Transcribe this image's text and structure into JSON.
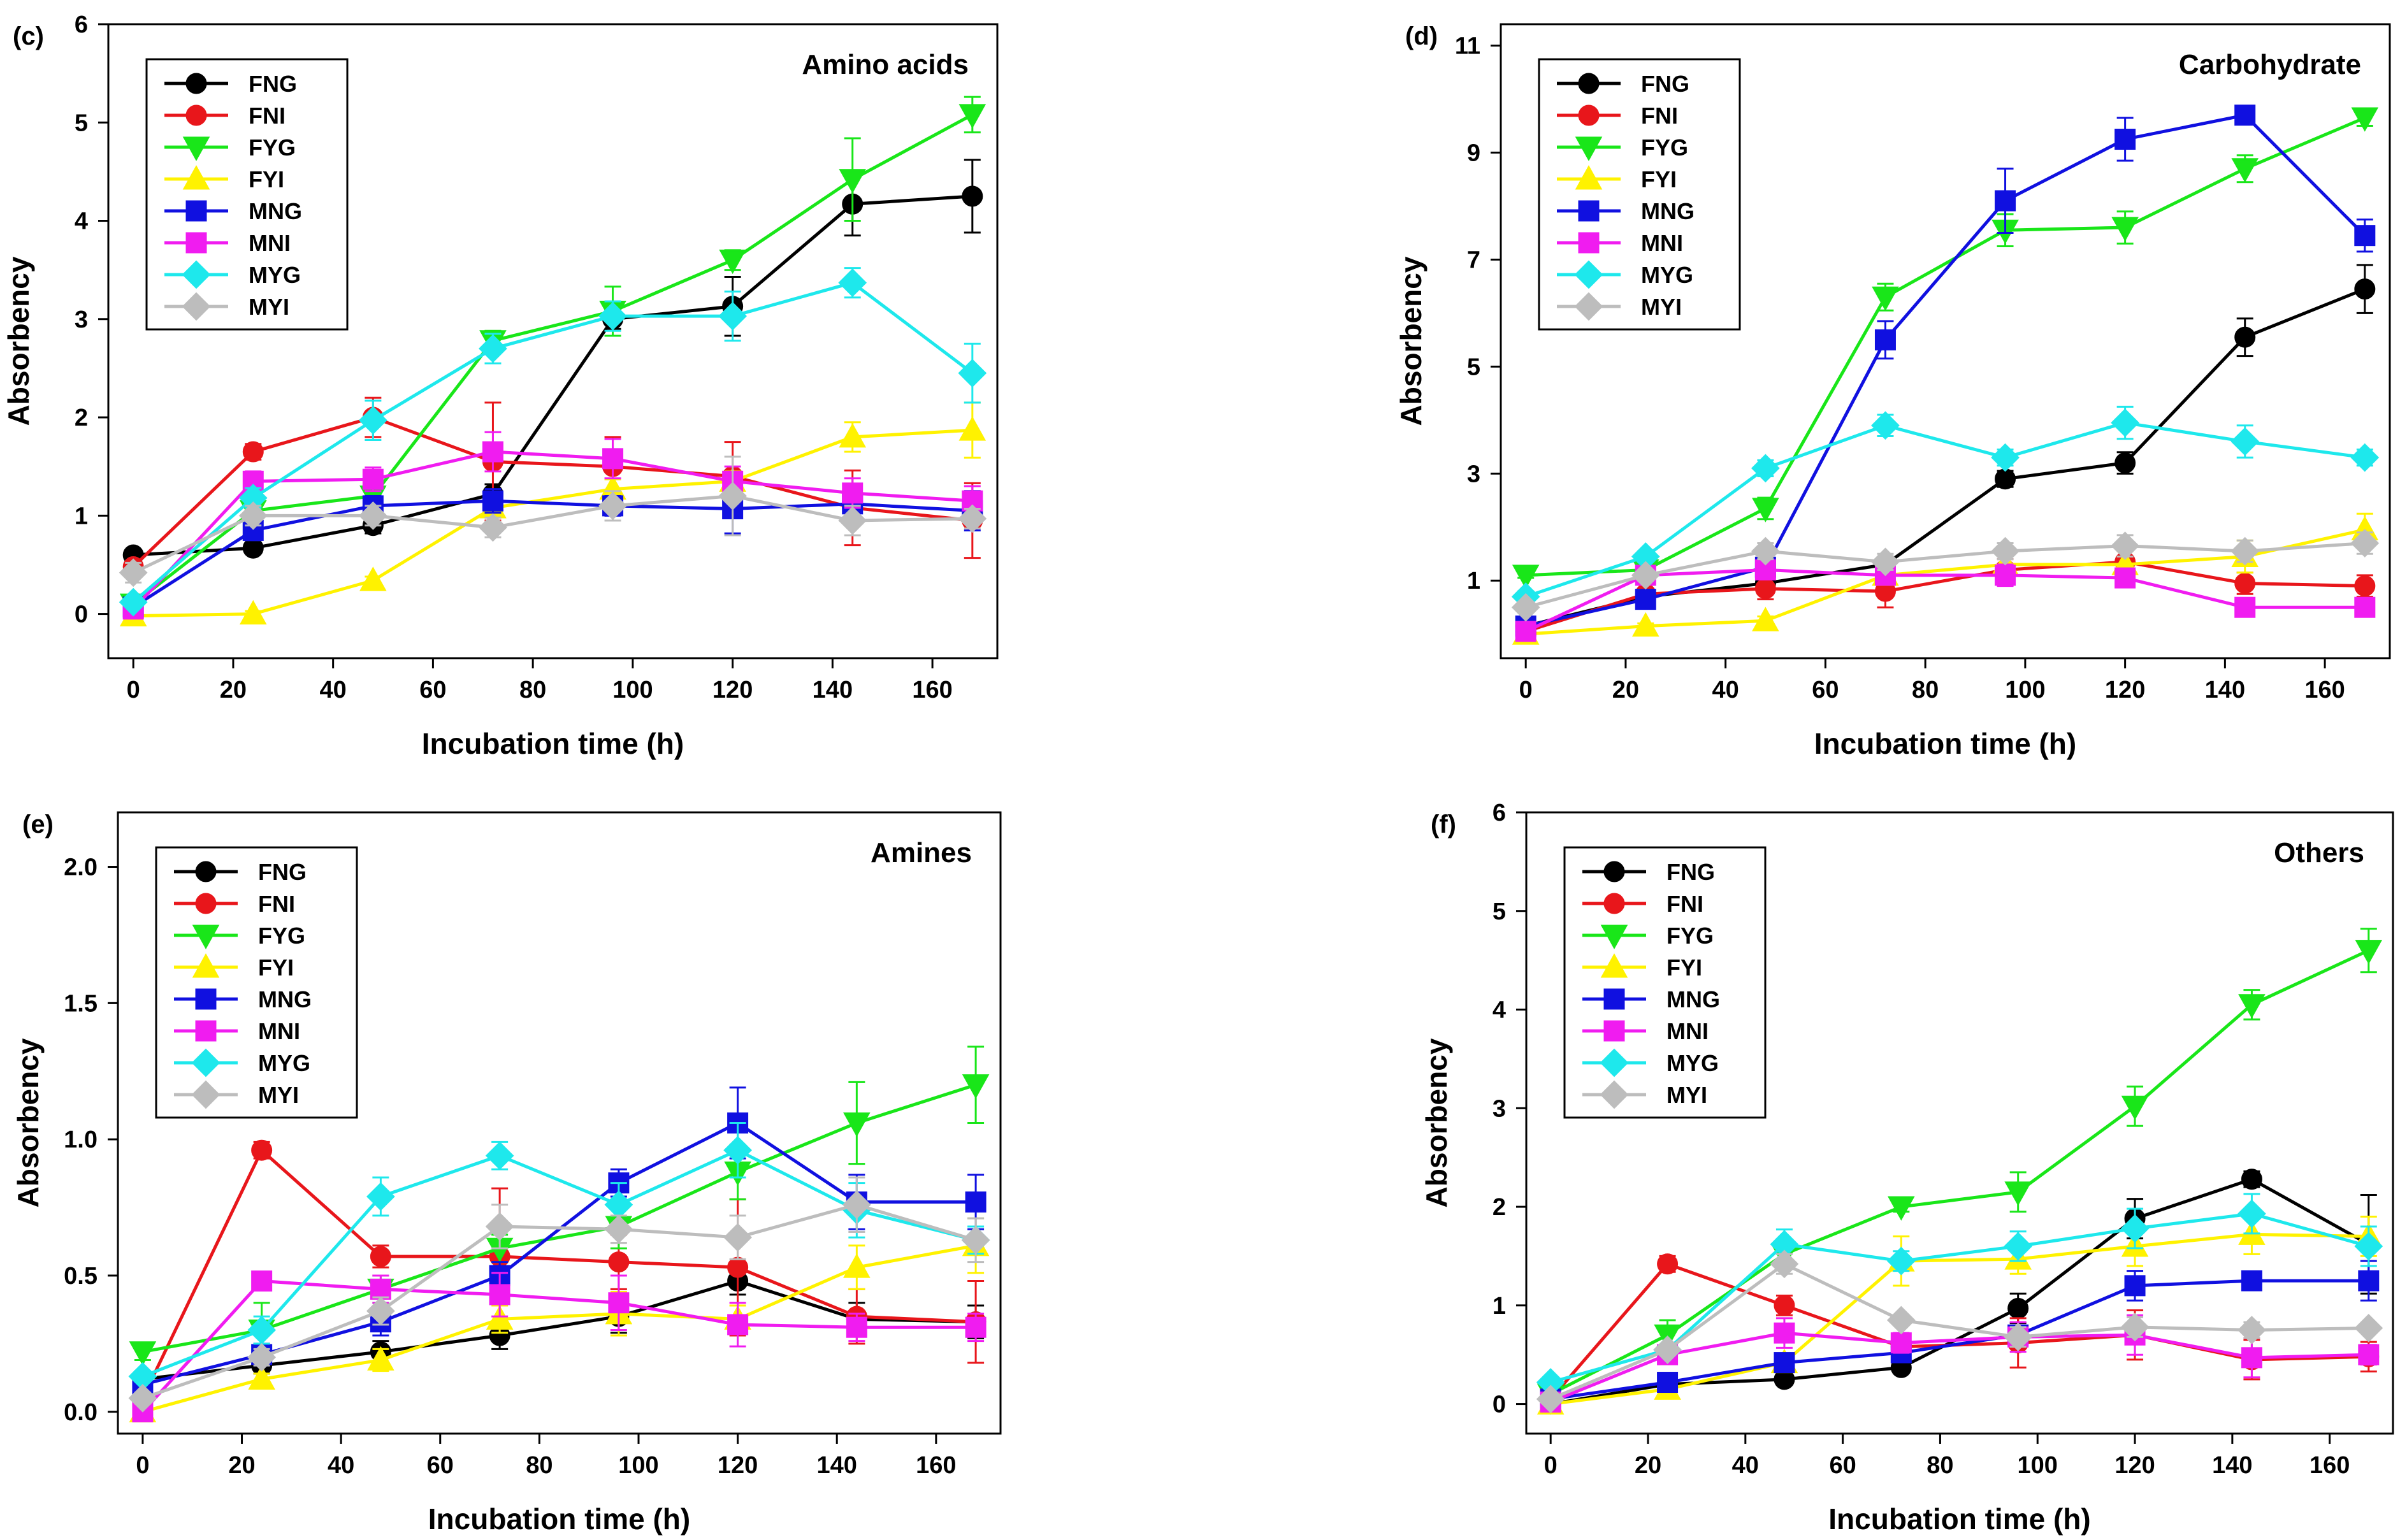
{
  "figure": {
    "xlabel": "Incubation time (h)",
    "ylabel": "Absorbency"
  },
  "series_style": [
    {
      "name": "FNG",
      "color": "#000000",
      "marker": "circle"
    },
    {
      "name": "FNI",
      "color": "#e8161b",
      "marker": "circle"
    },
    {
      "name": "FYG",
      "color": "#19e619",
      "marker": "triangle-down"
    },
    {
      "name": "FYI",
      "color": "#fff200",
      "marker": "triangle-up"
    },
    {
      "name": "MNG",
      "color": "#1010e0",
      "marker": "square"
    },
    {
      "name": "MNI",
      "color": "#f01cf0",
      "marker": "square"
    },
    {
      "name": "MYG",
      "color": "#1ee8ec",
      "marker": "diamond"
    },
    {
      "name": "MYI",
      "color": "#bdbdbd",
      "marker": "diamond"
    }
  ],
  "chart_data": [
    {
      "type": "line",
      "panel_label": "(c)",
      "title": "Amino acids",
      "xlabel": "Incubation time (h)",
      "ylabel": "Absorbency",
      "x": [
        0,
        24,
        48,
        72,
        96,
        120,
        144,
        168
      ],
      "xlim": [
        -5,
        173
      ],
      "ylim": [
        -0.45,
        6
      ],
      "xticks": [
        0,
        20,
        40,
        60,
        80,
        100,
        120,
        140,
        160
      ],
      "yticks": [
        0,
        1,
        2,
        3,
        4,
        5,
        6
      ],
      "tick_decimals": 0,
      "legend_position": "top-left",
      "series": [
        {
          "name": "FNG",
          "values": [
            0.6,
            0.67,
            0.9,
            1.22,
            3.0,
            3.13,
            4.17,
            4.25
          ],
          "errors": [
            0.05,
            0.05,
            0.08,
            0.1,
            0.1,
            0.3,
            0.32,
            0.37
          ]
        },
        {
          "name": "FNI",
          "values": [
            0.48,
            1.65,
            2.0,
            1.55,
            1.5,
            1.4,
            1.08,
            0.95
          ],
          "errors": [
            0.05,
            0.08,
            0.2,
            0.6,
            0.3,
            0.35,
            0.38,
            0.38
          ]
        },
        {
          "name": "FYG",
          "values": [
            0.1,
            1.05,
            1.2,
            2.78,
            3.08,
            3.6,
            4.42,
            5.08
          ],
          "errors": [
            0.05,
            0.1,
            0.15,
            0.1,
            0.25,
            0.1,
            0.42,
            0.18
          ]
        },
        {
          "name": "FYI",
          "values": [
            -0.02,
            0.0,
            0.34,
            1.08,
            1.27,
            1.35,
            1.8,
            1.87
          ],
          "errors": [
            0.02,
            0.03,
            0.04,
            0.1,
            0.1,
            0.1,
            0.15,
            0.28
          ]
        },
        {
          "name": "MNG",
          "values": [
            0.07,
            0.85,
            1.1,
            1.15,
            1.1,
            1.07,
            1.12,
            1.05
          ],
          "errors": [
            0.05,
            0.1,
            0.1,
            0.12,
            0.1,
            0.25,
            0.2,
            0.2
          ]
        },
        {
          "name": "MNI",
          "values": [
            0.05,
            1.35,
            1.37,
            1.65,
            1.58,
            1.35,
            1.23,
            1.15
          ],
          "errors": [
            0.05,
            0.1,
            0.12,
            0.2,
            0.2,
            0.15,
            0.15,
            0.15
          ]
        },
        {
          "name": "MYG",
          "values": [
            0.12,
            1.18,
            1.97,
            2.7,
            3.03,
            3.03,
            3.37,
            2.45
          ],
          "errors": [
            0.05,
            0.1,
            0.2,
            0.15,
            0.15,
            0.25,
            0.15,
            0.3
          ]
        },
        {
          "name": "MYI",
          "values": [
            0.42,
            1.0,
            1.0,
            0.88,
            1.1,
            1.2,
            0.95,
            0.97
          ],
          "errors": [
            0.1,
            0.1,
            0.1,
            0.1,
            0.15,
            0.4,
            0.15,
            0.1
          ]
        }
      ]
    },
    {
      "type": "line",
      "panel_label": "(d)",
      "title": "Carbohydrate",
      "xlabel": "Incubation time (h)",
      "ylabel": "Absorbency",
      "x": [
        0,
        24,
        48,
        72,
        96,
        120,
        144,
        168
      ],
      "xlim": [
        -5,
        173
      ],
      "ylim": [
        -0.45,
        11.4
      ],
      "xticks": [
        0,
        20,
        40,
        60,
        80,
        100,
        120,
        140,
        160
      ],
      "yticks": [
        1,
        3,
        5,
        7,
        9,
        11
      ],
      "tick_decimals": 0,
      "legend_position": "top-left",
      "series": [
        {
          "name": "FNG",
          "values": [
            0.15,
            0.7,
            0.95,
            1.3,
            2.9,
            3.2,
            5.55,
            6.45
          ],
          "errors": [
            0.05,
            0.08,
            0.1,
            0.15,
            0.15,
            0.2,
            0.35,
            0.45
          ]
        },
        {
          "name": "FNI",
          "values": [
            0.05,
            0.75,
            0.85,
            0.8,
            1.2,
            1.35,
            0.95,
            0.9
          ],
          "errors": [
            0.05,
            0.1,
            0.2,
            0.3,
            0.2,
            0.3,
            0.2,
            0.2
          ]
        },
        {
          "name": "FYG",
          "values": [
            1.1,
            1.2,
            2.35,
            6.3,
            7.55,
            7.6,
            8.7,
            9.65
          ],
          "errors": [
            0.05,
            0.1,
            0.2,
            0.25,
            0.3,
            0.3,
            0.25,
            0.15
          ]
        },
        {
          "name": "FYI",
          "values": [
            0.0,
            0.15,
            0.25,
            1.1,
            1.3,
            1.3,
            1.45,
            1.95
          ],
          "errors": [
            0.05,
            0.05,
            0.08,
            0.15,
            0.2,
            0.25,
            0.3,
            0.3
          ]
        },
        {
          "name": "MNG",
          "values": [
            0.15,
            0.65,
            1.25,
            5.5,
            8.1,
            9.25,
            9.7,
            7.45
          ],
          "errors": [
            0.05,
            0.1,
            0.15,
            0.35,
            0.6,
            0.4,
            0.1,
            0.3
          ]
        },
        {
          "name": "MNI",
          "values": [
            0.05,
            1.1,
            1.2,
            1.1,
            1.1,
            1.05,
            0.5,
            0.5
          ],
          "errors": [
            0.05,
            0.1,
            0.1,
            0.15,
            0.2,
            0.15,
            0.1,
            0.1
          ]
        },
        {
          "name": "MYG",
          "values": [
            0.7,
            1.45,
            3.1,
            3.9,
            3.3,
            3.95,
            3.6,
            3.3
          ],
          "errors": [
            0.1,
            0.1,
            0.15,
            0.2,
            0.15,
            0.3,
            0.3,
            0.15
          ]
        },
        {
          "name": "MYI",
          "values": [
            0.5,
            1.1,
            1.55,
            1.35,
            1.55,
            1.65,
            1.55,
            1.7
          ],
          "errors": [
            0.1,
            0.1,
            0.15,
            0.15,
            0.15,
            0.2,
            0.2,
            0.2
          ]
        }
      ]
    },
    {
      "type": "line",
      "panel_label": "(e)",
      "title": "Amines",
      "xlabel": "Incubation time (h)",
      "ylabel": "Absorbency",
      "x": [
        0,
        24,
        48,
        72,
        96,
        120,
        144,
        168
      ],
      "xlim": [
        -5,
        173
      ],
      "ylim": [
        -0.08,
        2.2
      ],
      "xticks": [
        0,
        20,
        40,
        60,
        80,
        100,
        120,
        140,
        160
      ],
      "yticks": [
        0.0,
        0.5,
        1.0,
        1.5,
        2.0
      ],
      "tick_decimals": 1,
      "legend_position": "top-left",
      "series": [
        {
          "name": "FNG",
          "values": [
            0.12,
            0.17,
            0.22,
            0.28,
            0.35,
            0.48,
            0.34,
            0.33
          ],
          "errors": [
            0.02,
            0.03,
            0.04,
            0.05,
            0.06,
            0.05,
            0.06,
            0.06
          ]
        },
        {
          "name": "FNI",
          "values": [
            0.05,
            0.96,
            0.57,
            0.57,
            0.55,
            0.53,
            0.35,
            0.33
          ],
          "errors": [
            0.02,
            0.03,
            0.04,
            0.25,
            0.1,
            0.25,
            0.1,
            0.15
          ]
        },
        {
          "name": "FYG",
          "values": [
            0.22,
            0.3,
            0.45,
            0.6,
            0.68,
            0.88,
            1.06,
            1.2
          ],
          "errors": [
            0.03,
            0.1,
            0.05,
            0.05,
            0.08,
            0.1,
            0.15,
            0.14
          ]
        },
        {
          "name": "FYI",
          "values": [
            0.0,
            0.12,
            0.19,
            0.34,
            0.36,
            0.34,
            0.53,
            0.61
          ],
          "errors": [
            0.02,
            0.02,
            0.04,
            0.05,
            0.08,
            0.05,
            0.08,
            0.1
          ]
        },
        {
          "name": "MNG",
          "values": [
            0.1,
            0.21,
            0.33,
            0.5,
            0.84,
            1.06,
            0.77,
            0.77
          ],
          "errors": [
            0.02,
            0.04,
            0.05,
            0.05,
            0.05,
            0.13,
            0.1,
            0.1
          ]
        },
        {
          "name": "MNI",
          "values": [
            0.0,
            0.48,
            0.45,
            0.43,
            0.4,
            0.32,
            0.31,
            0.31
          ],
          "errors": [
            0.02,
            0.03,
            0.05,
            0.08,
            0.1,
            0.08,
            0.05,
            0.05
          ]
        },
        {
          "name": "MYG",
          "values": [
            0.13,
            0.3,
            0.79,
            0.94,
            0.76,
            0.96,
            0.74,
            0.63
          ],
          "errors": [
            0.02,
            0.05,
            0.07,
            0.05,
            0.08,
            0.1,
            0.1,
            0.05
          ]
        },
        {
          "name": "MYI",
          "values": [
            0.05,
            0.2,
            0.37,
            0.68,
            0.67,
            0.64,
            0.76,
            0.63
          ],
          "errors": [
            0.02,
            0.03,
            0.05,
            0.08,
            0.05,
            0.08,
            0.1,
            0.08
          ]
        }
      ]
    },
    {
      "type": "line",
      "panel_label": "(f)",
      "title": "Others",
      "xlabel": "Incubation time (h)",
      "ylabel": "Absorbency",
      "x": [
        0,
        24,
        48,
        72,
        96,
        120,
        144,
        168
      ],
      "xlim": [
        -5,
        173
      ],
      "ylim": [
        -0.3,
        6
      ],
      "xticks": [
        0,
        20,
        40,
        60,
        80,
        100,
        120,
        140,
        160
      ],
      "yticks": [
        0,
        1,
        2,
        3,
        4,
        5,
        6
      ],
      "tick_decimals": 0,
      "legend_position": "top-left",
      "series": [
        {
          "name": "FNG",
          "values": [
            0.0,
            0.2,
            0.25,
            0.37,
            0.97,
            1.88,
            2.28,
            1.62
          ],
          "errors": [
            0.02,
            0.03,
            0.05,
            0.05,
            0.15,
            0.2,
            0.08,
            0.5
          ]
        },
        {
          "name": "FNI",
          "values": [
            0.05,
            1.42,
            1.0,
            0.58,
            0.62,
            0.7,
            0.45,
            0.48
          ],
          "errors": [
            0.03,
            0.08,
            0.1,
            0.1,
            0.25,
            0.25,
            0.2,
            0.15
          ]
        },
        {
          "name": "FYG",
          "values": [
            0.1,
            0.7,
            1.52,
            2.0,
            2.15,
            3.02,
            4.05,
            4.6
          ],
          "errors": [
            0.03,
            0.15,
            0.15,
            0.05,
            0.2,
            0.2,
            0.15,
            0.22
          ]
        },
        {
          "name": "FYI",
          "values": [
            0.0,
            0.15,
            0.42,
            1.45,
            1.47,
            1.6,
            1.72,
            1.7
          ],
          "errors": [
            0.02,
            0.04,
            0.05,
            0.25,
            0.15,
            0.2,
            0.2,
            0.2
          ]
        },
        {
          "name": "MNG",
          "values": [
            0.05,
            0.22,
            0.42,
            0.52,
            0.7,
            1.2,
            1.25,
            1.25
          ],
          "errors": [
            0.02,
            0.04,
            0.05,
            0.05,
            0.08,
            0.15,
            0.05,
            0.2
          ]
        },
        {
          "name": "MNI",
          "values": [
            0.02,
            0.5,
            0.72,
            0.62,
            0.68,
            0.7,
            0.47,
            0.5
          ],
          "errors": [
            0.02,
            0.05,
            0.15,
            0.1,
            0.15,
            0.2,
            0.2,
            0.1
          ]
        },
        {
          "name": "MYG",
          "values": [
            0.22,
            0.55,
            1.62,
            1.45,
            1.6,
            1.78,
            1.93,
            1.6
          ],
          "errors": [
            0.03,
            0.05,
            0.15,
            0.1,
            0.15,
            0.2,
            0.2,
            0.2
          ]
        },
        {
          "name": "MYI",
          "values": [
            0.05,
            0.55,
            1.42,
            0.85,
            0.68,
            0.78,
            0.75,
            0.77
          ],
          "errors": [
            0.02,
            0.05,
            0.1,
            0.05,
            0.1,
            0.1,
            0.08,
            0.05
          ]
        }
      ]
    }
  ]
}
